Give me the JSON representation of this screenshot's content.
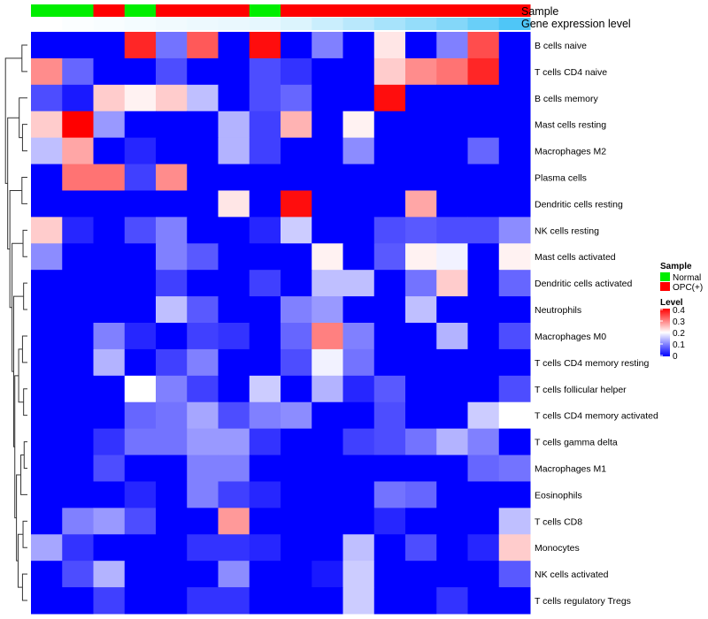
{
  "chart_data": {
    "type": "heatmap",
    "annotations": {
      "sample_title": "Sample",
      "expression_title": "Gene expression level"
    },
    "colors": {
      "normal": "#00ee00",
      "opc": "#ff0000",
      "level_low": "#0000ff",
      "level_mid": "#ffffff",
      "level_high": "#ff0000",
      "expression_low": "#ffffff",
      "expression_high": "#4fc6f7"
    },
    "sample_groups": [
      "Normal",
      "Normal",
      "OPC(+)",
      "Normal",
      "OPC(+)",
      "OPC(+)",
      "OPC(+)",
      "Normal",
      "OPC(+)",
      "OPC(+)",
      "OPC(+)",
      "OPC(+)",
      "OPC(+)",
      "OPC(+)",
      "OPC(+)",
      "OPC(+)"
    ],
    "expression_level": [
      0,
      0.02,
      0.04,
      0.06,
      0.08,
      0.1,
      0.12,
      0.14,
      0.2,
      0.3,
      0.4,
      0.5,
      0.6,
      0.7,
      0.85,
      1.0
    ],
    "rows": [
      "B cells naive",
      "T cells CD4 naive",
      "B cells memory",
      "Mast cells resting",
      "Macrophages M2",
      "Plasma cells",
      "Dendritic cells resting",
      "NK cells resting",
      "Mast cells activated",
      "Dendritic cells activated",
      "Neutrophils",
      "Macrophages M0",
      "T cells CD4 memory resting",
      "T cells follicular helper",
      "T cells CD4 memory activated",
      "T cells gamma delta",
      "Macrophages M1",
      "Eosinophils",
      "T cells CD8",
      "Monocytes",
      "NK cells activated",
      "T cells regulatory  Tregs"
    ],
    "values": [
      [
        0,
        0,
        0,
        0.37,
        0.09,
        0.33,
        0,
        0.39,
        0,
        0.1,
        0,
        0.22,
        0,
        0.1,
        0.34,
        0
      ],
      [
        0.29,
        0.08,
        0,
        0,
        0.06,
        0,
        0,
        0.06,
        0.04,
        0,
        0,
        0.24,
        0.29,
        0.31,
        0.37,
        0
      ],
      [
        0.06,
        0.02,
        0.24,
        0.21,
        0.24,
        0.15,
        0,
        0.06,
        0.08,
        0,
        0,
        0.39,
        0,
        0,
        0,
        0
      ],
      [
        0.24,
        0.4,
        0.12,
        0,
        0,
        0,
        0.14,
        0.05,
        0.26,
        0,
        0.21,
        0,
        0,
        0,
        0,
        0
      ],
      [
        0.15,
        0.27,
        0,
        0.03,
        0,
        0,
        0.14,
        0.05,
        0,
        0,
        0.11,
        0,
        0,
        0,
        0.08,
        0
      ],
      [
        0,
        0.31,
        0.31,
        0.05,
        0.29,
        0,
        0,
        0,
        0,
        0,
        0,
        0,
        0,
        0,
        0,
        0
      ],
      [
        0,
        0,
        0,
        0,
        0,
        0,
        0.22,
        0,
        0.39,
        0,
        0,
        0,
        0.27,
        0,
        0,
        0
      ],
      [
        0.24,
        0.03,
        0,
        0.06,
        0.1,
        0,
        0,
        0.03,
        0.16,
        0,
        0,
        0.06,
        0.07,
        0.06,
        0.06,
        0.11
      ],
      [
        0.11,
        0,
        0,
        0,
        0.1,
        0.07,
        0,
        0,
        0,
        0.21,
        0,
        0.07,
        0.21,
        0.19,
        0,
        0.21
      ],
      [
        0,
        0,
        0,
        0,
        0.05,
        0,
        0,
        0.05,
        0,
        0.15,
        0.15,
        0,
        0.09,
        0.24,
        0,
        0.08
      ],
      [
        0,
        0,
        0,
        0,
        0.15,
        0.07,
        0,
        0,
        0.1,
        0.12,
        0,
        0,
        0.15,
        0,
        0,
        0
      ],
      [
        0,
        0,
        0.1,
        0.03,
        0,
        0.05,
        0.04,
        0,
        0.08,
        0.3,
        0.1,
        0,
        0,
        0.14,
        0,
        0.06
      ],
      [
        0,
        0,
        0.14,
        0,
        0.05,
        0.1,
        0,
        0,
        0.06,
        0.19,
        0.09,
        0,
        0,
        0,
        0,
        0
      ],
      [
        0,
        0,
        0,
        0.2,
        0.1,
        0.05,
        0,
        0.16,
        0,
        0.14,
        0.03,
        0.07,
        0,
        0,
        0,
        0.06
      ],
      [
        0,
        0,
        0,
        0.08,
        0.09,
        0.13,
        0.06,
        0.1,
        0.11,
        0,
        0,
        0.06,
        0,
        0,
        0.16,
        0.2
      ],
      [
        0,
        0,
        0.04,
        0.09,
        0.09,
        0.12,
        0.12,
        0.04,
        0,
        0,
        0.05,
        0.06,
        0.09,
        0.14,
        0.1,
        0
      ],
      [
        0,
        0,
        0.06,
        0,
        0,
        0.1,
        0.1,
        0,
        0,
        0,
        0,
        0,
        0,
        0,
        0.08,
        0.09
      ],
      [
        0,
        0,
        0,
        0.03,
        0,
        0.1,
        0.05,
        0.03,
        0,
        0,
        0,
        0.09,
        0.08,
        0,
        0,
        0
      ],
      [
        0,
        0.1,
        0.12,
        0.06,
        0,
        0,
        0.28,
        0,
        0,
        0,
        0,
        0.03,
        0,
        0,
        0,
        0.15
      ],
      [
        0.13,
        0.04,
        0,
        0,
        0,
        0.04,
        0.04,
        0.03,
        0,
        0,
        0.15,
        0,
        0.06,
        0,
        0.03,
        0.24
      ],
      [
        0,
        0.06,
        0.14,
        0,
        0,
        0,
        0.11,
        0,
        0,
        0.02,
        0.16,
        0,
        0,
        0,
        0,
        0.07
      ],
      [
        0,
        0,
        0.05,
        0,
        0,
        0.04,
        0.04,
        0,
        0,
        0,
        0.16,
        0,
        0,
        0.04,
        0,
        0
      ]
    ],
    "legend_sample": {
      "title": "Sample",
      "items": [
        "Normal",
        "OPC(+)"
      ]
    },
    "legend_level": {
      "title": "Level",
      "ticks": [
        "0.4",
        "0.3",
        "0.2",
        "0.1",
        "0"
      ],
      "range": [
        0,
        0.4
      ]
    },
    "dendrogram": "row hierarchical clustering tree (left side)"
  }
}
